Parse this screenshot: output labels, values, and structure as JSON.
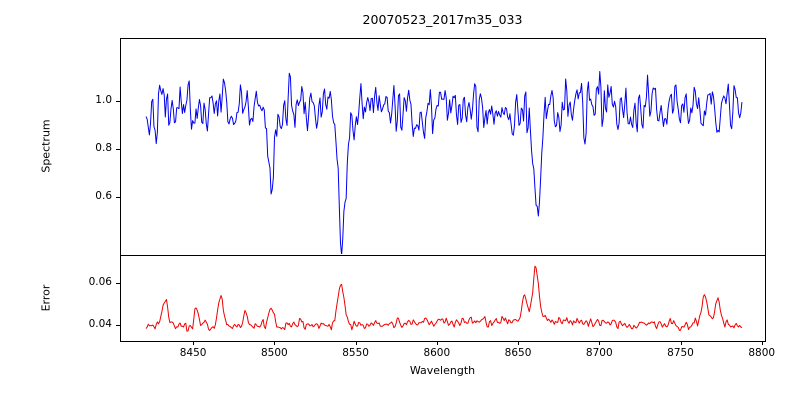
{
  "chart_data": {
    "type": "line",
    "title": "20070523_2017m35_033",
    "xlabel": "Wavelength",
    "xlim": [
      8405,
      8802
    ],
    "xticks": [
      8450,
      8500,
      8550,
      8600,
      8650,
      8700,
      8750,
      8800
    ],
    "x_data_range": [
      8421,
      8788
    ],
    "sample_step": 0.7,
    "noise_seed": 42,
    "grid": false,
    "legend": "none",
    "panels": [
      {
        "name": "spectrum",
        "ylabel": "Spectrum",
        "color": "#0000ee",
        "ylim": [
          0.36,
          1.26
        ],
        "yticks": [
          0.6,
          0.8,
          1.0
        ],
        "ytick_labels": [
          "0.6",
          "0.8",
          "1.0"
        ],
        "baseline": 0.97,
        "noise_sigma": 0.075,
        "features": [
          {
            "type": "absorption",
            "center": 8498,
            "depth": 0.36,
            "width": 1.8
          },
          {
            "type": "absorption",
            "center": 8542,
            "depth": 0.56,
            "width": 2.6
          },
          {
            "type": "absorption",
            "center": 8662,
            "depth": 0.41,
            "width": 2.2
          }
        ]
      },
      {
        "name": "error",
        "ylabel": "Error",
        "color": "#ee0000",
        "ylim": [
          0.0324,
          0.0733
        ],
        "yticks": [
          0.04,
          0.06
        ],
        "ytick_labels": [
          "0.04",
          "0.06"
        ],
        "baseline": 0.0395,
        "noise_sigma": 0.0016,
        "broad_bump": {
          "center": 8645,
          "height": 0.0028,
          "width": 55
        },
        "features": [
          {
            "type": "spike",
            "center": 8433,
            "height": 0.013,
            "width": 1.5
          },
          {
            "type": "spike",
            "center": 8452,
            "height": 0.008,
            "width": 1.2
          },
          {
            "type": "spike",
            "center": 8467,
            "height": 0.013,
            "width": 1.5
          },
          {
            "type": "spike",
            "center": 8482,
            "height": 0.006,
            "width": 1.2
          },
          {
            "type": "spike",
            "center": 8498,
            "height": 0.008,
            "width": 1.5
          },
          {
            "type": "spike",
            "center": 8541,
            "height": 0.02,
            "width": 2.0
          },
          {
            "type": "spike",
            "center": 8654,
            "height": 0.012,
            "width": 1.5
          },
          {
            "type": "spike",
            "center": 8661,
            "height": 0.026,
            "width": 1.8
          },
          {
            "type": "spike",
            "center": 8765,
            "height": 0.016,
            "width": 1.8
          },
          {
            "type": "spike",
            "center": 8773,
            "height": 0.012,
            "width": 1.8
          }
        ]
      }
    ]
  }
}
